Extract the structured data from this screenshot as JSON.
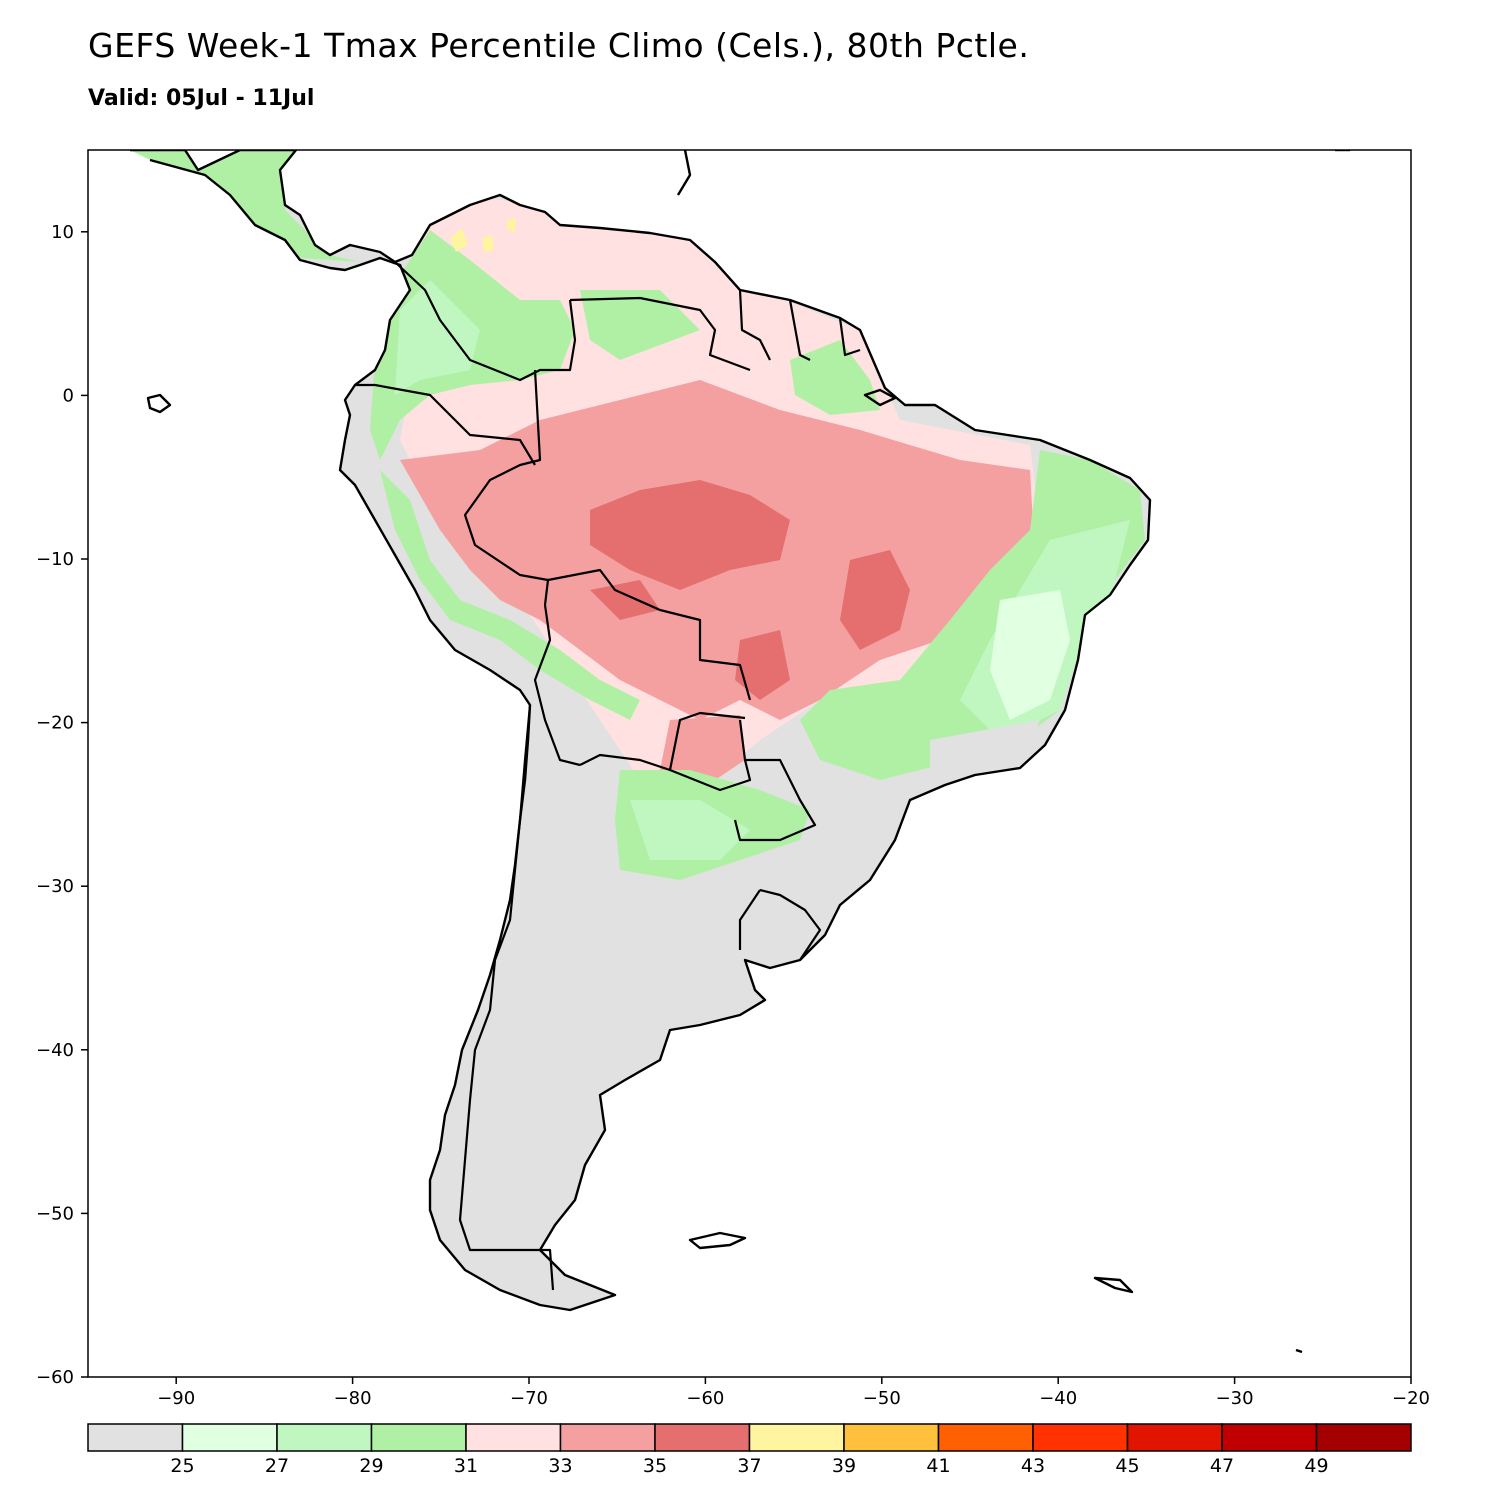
{
  "title": "GEFS Week-1 Tmax Percentile Climo (Cels.), 80th Pctle.",
  "subtitle": "Valid: 05Jul - 11Jul",
  "map": {
    "lon_range": [
      -95,
      -20
    ],
    "lat_range": [
      -60,
      15
    ],
    "x_ticks": [
      "-90",
      "-80",
      "-70",
      "-60",
      "-50",
      "-40",
      "-30",
      "-20"
    ],
    "y_ticks": [
      "10",
      "0",
      "-10",
      "-20",
      "-30",
      "-40",
      "-50",
      "-60"
    ],
    "region": "South America"
  },
  "legend": {
    "unit": "Cels.",
    "colors": [
      "#e1e1e1",
      "#e1ffe1",
      "#c0f7c0",
      "#b0f0a5",
      "#ffe1e1",
      "#f4a0a0",
      "#e56e6e",
      "#fff5a0",
      "#ffc03c",
      "#ff6000",
      "#ff3200",
      "#e11400",
      "#c00000",
      "#a50000"
    ],
    "labels": [
      "25",
      "27",
      "29",
      "31",
      "33",
      "35",
      "37",
      "39",
      "41",
      "43",
      "45",
      "47",
      "49"
    ]
  },
  "field": {
    "below_25": "#e1e1e1",
    "25_27": "#e1ffe1",
    "27_29": "#c0f7c0",
    "29_31": "#b0f0a5",
    "31_33": "#ffe1e1",
    "33_35": "#f4a0a0",
    "35_37": "#e56e6e",
    "37_39": "#fff5a0"
  }
}
